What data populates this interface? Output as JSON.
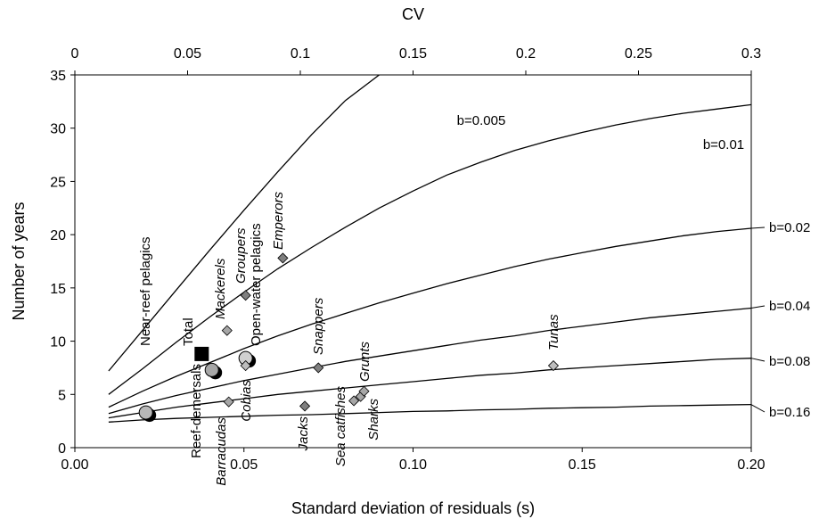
{
  "chart_data": {
    "type": "scatter",
    "xlabel": "Standard deviation of residuals (s)",
    "ylabel": "Number of years",
    "x2label": "CV",
    "xlim": [
      0,
      0.2
    ],
    "ylim": [
      0,
      35
    ],
    "x2lim": [
      0,
      0.3
    ],
    "xticks": [
      "0.00",
      "0.05",
      "0.10",
      "0.15",
      "0.20"
    ],
    "yticks": [
      "0",
      "5",
      "10",
      "15",
      "20",
      "25",
      "30",
      "35"
    ],
    "x2ticks": [
      "0",
      "0.05",
      "0.1",
      "0.15",
      "0.2",
      "0.25",
      "0.3"
    ],
    "curves": [
      {
        "name": "b=0.005",
        "points": [
          [
            0.01,
            7.2
          ],
          [
            0.02,
            11.0
          ],
          [
            0.03,
            14.8
          ],
          [
            0.04,
            18.6
          ],
          [
            0.05,
            22.3
          ],
          [
            0.06,
            25.9
          ],
          [
            0.07,
            29.4
          ],
          [
            0.08,
            32.6
          ],
          [
            0.09,
            35.0
          ]
        ]
      },
      {
        "name": "b=0.01",
        "points": [
          [
            0.01,
            5.0
          ],
          [
            0.02,
            7.4
          ],
          [
            0.03,
            9.9
          ],
          [
            0.04,
            12.3
          ],
          [
            0.05,
            14.6
          ],
          [
            0.06,
            16.8
          ],
          [
            0.07,
            18.8
          ],
          [
            0.08,
            20.7
          ],
          [
            0.09,
            22.5
          ],
          [
            0.1,
            24.1
          ],
          [
            0.11,
            25.6
          ],
          [
            0.12,
            26.8
          ],
          [
            0.13,
            27.9
          ],
          [
            0.14,
            28.8
          ],
          [
            0.15,
            29.6
          ],
          [
            0.16,
            30.3
          ],
          [
            0.17,
            30.9
          ],
          [
            0.18,
            31.4
          ],
          [
            0.19,
            31.8
          ],
          [
            0.2,
            32.2
          ]
        ]
      },
      {
        "name": "b=0.02",
        "points": [
          [
            0.01,
            3.8
          ],
          [
            0.02,
            5.3
          ],
          [
            0.03,
            6.7
          ],
          [
            0.04,
            8.0
          ],
          [
            0.05,
            9.3
          ],
          [
            0.06,
            10.5
          ],
          [
            0.07,
            11.6
          ],
          [
            0.08,
            12.6
          ],
          [
            0.09,
            13.6
          ],
          [
            0.1,
            14.5
          ],
          [
            0.11,
            15.4
          ],
          [
            0.12,
            16.2
          ],
          [
            0.13,
            17.0
          ],
          [
            0.14,
            17.7
          ],
          [
            0.15,
            18.3
          ],
          [
            0.16,
            18.9
          ],
          [
            0.17,
            19.4
          ],
          [
            0.18,
            19.9
          ],
          [
            0.19,
            20.3
          ],
          [
            0.2,
            20.6
          ]
        ]
      },
      {
        "name": "b=0.04",
        "points": [
          [
            0.01,
            3.2
          ],
          [
            0.02,
            4.1
          ],
          [
            0.03,
            4.9
          ],
          [
            0.04,
            5.6
          ],
          [
            0.05,
            6.3
          ],
          [
            0.06,
            6.9
          ],
          [
            0.07,
            7.5
          ],
          [
            0.08,
            8.1
          ],
          [
            0.09,
            8.6
          ],
          [
            0.1,
            9.1
          ],
          [
            0.11,
            9.6
          ],
          [
            0.12,
            10.1
          ],
          [
            0.13,
            10.5
          ],
          [
            0.14,
            11.0
          ],
          [
            0.15,
            11.4
          ],
          [
            0.16,
            11.8
          ],
          [
            0.17,
            12.2
          ],
          [
            0.18,
            12.5
          ],
          [
            0.19,
            12.8
          ],
          [
            0.2,
            13.1
          ]
        ]
      },
      {
        "name": "b=0.08",
        "points": [
          [
            0.01,
            2.8
          ],
          [
            0.02,
            3.3
          ],
          [
            0.03,
            3.8
          ],
          [
            0.04,
            4.2
          ],
          [
            0.05,
            4.6
          ],
          [
            0.06,
            5.0
          ],
          [
            0.07,
            5.3
          ],
          [
            0.08,
            5.6
          ],
          [
            0.09,
            5.9
          ],
          [
            0.1,
            6.2
          ],
          [
            0.11,
            6.5
          ],
          [
            0.12,
            6.8
          ],
          [
            0.13,
            7.0
          ],
          [
            0.14,
            7.3
          ],
          [
            0.15,
            7.5
          ],
          [
            0.16,
            7.7
          ],
          [
            0.17,
            7.9
          ],
          [
            0.18,
            8.1
          ],
          [
            0.19,
            8.3
          ],
          [
            0.2,
            8.4
          ]
        ]
      },
      {
        "name": "b=0.16",
        "points": [
          [
            0.01,
            2.4
          ],
          [
            0.02,
            2.6
          ],
          [
            0.03,
            2.75
          ],
          [
            0.04,
            2.85
          ],
          [
            0.05,
            2.95
          ],
          [
            0.06,
            3.05
          ],
          [
            0.07,
            3.1
          ],
          [
            0.08,
            3.2
          ],
          [
            0.09,
            3.3
          ],
          [
            0.1,
            3.4
          ],
          [
            0.11,
            3.45
          ],
          [
            0.12,
            3.55
          ],
          [
            0.13,
            3.6
          ],
          [
            0.14,
            3.7
          ],
          [
            0.15,
            3.75
          ],
          [
            0.16,
            3.8
          ],
          [
            0.17,
            3.9
          ],
          [
            0.18,
            3.95
          ],
          [
            0.19,
            4.0
          ],
          [
            0.2,
            4.05
          ]
        ]
      }
    ],
    "points": [
      {
        "label": "Near-reef pelagics",
        "marker": "circle",
        "color": "#b8b8b8",
        "x": 0.021,
        "y": 3.3
      },
      {
        "label": "Reef-demersals",
        "marker": "circle",
        "color": "#a6a6a6",
        "x": 0.0405,
        "y": 7.3
      },
      {
        "label": "Total",
        "marker": "square",
        "color": "#000000",
        "x": 0.0375,
        "y": 8.8
      },
      {
        "label": "Open-water pelagics",
        "marker": "circle",
        "color": "#d0d0d0",
        "x": 0.0505,
        "y": 8.4
      },
      {
        "label": "Barracudas",
        "marker": "diamond",
        "color": "#a6a6a6",
        "x": 0.0455,
        "y": 4.3
      },
      {
        "label": "Mackerels",
        "marker": "diamond",
        "color": "#a6a6a6",
        "x": 0.045,
        "y": 11.0
      },
      {
        "label": "Cobias",
        "marker": "diamond",
        "color": "#bdbdbd",
        "x": 0.0505,
        "y": 7.7
      },
      {
        "label": "Groupers",
        "marker": "diamond",
        "color": "#7f7f7f",
        "x": 0.0505,
        "y": 14.3
      },
      {
        "label": "Emperors",
        "marker": "diamond",
        "color": "#7f7f7f",
        "x": 0.0615,
        "y": 17.8
      },
      {
        "label": "Jacks",
        "marker": "diamond",
        "color": "#7f7f7f",
        "x": 0.068,
        "y": 3.9
      },
      {
        "label": "Snappers",
        "marker": "diamond",
        "color": "#7f7f7f",
        "x": 0.072,
        "y": 7.5
      },
      {
        "label": "Sea catfishes",
        "marker": "diamond",
        "color": "#a6a6a6",
        "x": 0.0825,
        "y": 4.4
      },
      {
        "label": "Sharks",
        "marker": "diamond",
        "color": "#a6a6a6",
        "x": 0.0845,
        "y": 4.8
      },
      {
        "label": "Grunts",
        "marker": "diamond",
        "color": "#a6a6a6",
        "x": 0.0855,
        "y": 5.3
      },
      {
        "label": "Tunas",
        "marker": "diamond",
        "color": "#bdbdbd",
        "x": 0.1415,
        "y": 7.7
      }
    ],
    "grid": false
  }
}
